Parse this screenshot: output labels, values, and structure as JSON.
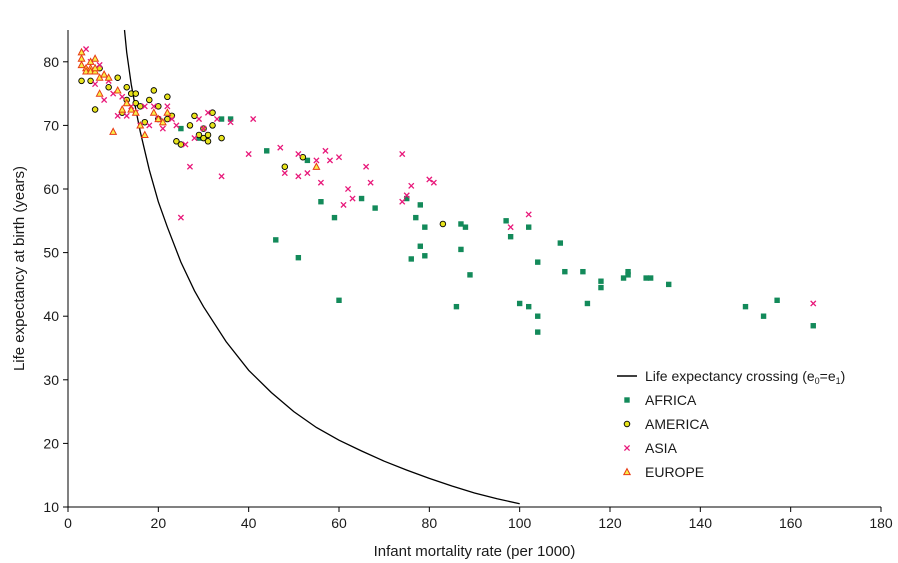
{
  "chart_data": {
    "type": "scatter",
    "title": "",
    "xlabel": "Infant mortality rate (per 1000)",
    "ylabel": "Life expectancy at birth (years)",
    "xlim": [
      0,
      180
    ],
    "ylim": [
      10,
      85
    ],
    "x_ticks": [
      0,
      20,
      40,
      60,
      80,
      100,
      120,
      140,
      160,
      180
    ],
    "y_ticks": [
      10,
      20,
      30,
      40,
      50,
      60,
      70,
      80
    ],
    "x_tick_labels": [
      "0",
      "20",
      "40",
      "60",
      "80",
      "100",
      "120",
      "140",
      "160",
      "180"
    ],
    "y_tick_labels": [
      "10",
      "20",
      "30",
      "40",
      "50",
      "60",
      "70",
      "80"
    ],
    "grid": false,
    "legend_position": "right",
    "curve": {
      "name_main": "Life expectancy crossing (e",
      "name_sub0": "0",
      "name_mid": "=e",
      "name_sub1": "1",
      "name_end": ")",
      "color": "#000000",
      "points": [
        [
          12.5,
          85
        ],
        [
          13,
          81.5
        ],
        [
          14,
          76.5
        ],
        [
          15,
          72.5
        ],
        [
          16,
          69
        ],
        [
          18,
          63
        ],
        [
          20,
          58
        ],
        [
          22,
          54
        ],
        [
          25,
          48.5
        ],
        [
          28,
          44
        ],
        [
          30,
          41.5
        ],
        [
          35,
          36
        ],
        [
          40,
          31.5
        ],
        [
          45,
          28
        ],
        [
          50,
          25
        ],
        [
          55,
          22.5
        ],
        [
          60,
          20.5
        ],
        [
          65,
          18.8
        ],
        [
          70,
          17.2
        ],
        [
          75,
          15.8
        ],
        [
          80,
          14.5
        ],
        [
          85,
          13.3
        ],
        [
          90,
          12.2
        ],
        [
          95,
          11.3
        ],
        [
          100,
          10.5
        ]
      ]
    },
    "series": [
      {
        "name": "AFRICA",
        "color": "#138a5a",
        "marker": "square",
        "points": [
          [
            25,
            69.5
          ],
          [
            29,
            68
          ],
          [
            34,
            71
          ],
          [
            36,
            71
          ],
          [
            44,
            66
          ],
          [
            46,
            52
          ],
          [
            51,
            49.2
          ],
          [
            53,
            64.5
          ],
          [
            56,
            58
          ],
          [
            59,
            55.5
          ],
          [
            60,
            42.5
          ],
          [
            65,
            58.5
          ],
          [
            68,
            57
          ],
          [
            75,
            58.5
          ],
          [
            76,
            49
          ],
          [
            77,
            55.5
          ],
          [
            78,
            51
          ],
          [
            78,
            57.5
          ],
          [
            79,
            54
          ],
          [
            79,
            49.5
          ],
          [
            86,
            41.5
          ],
          [
            87,
            50.5
          ],
          [
            87,
            54.5
          ],
          [
            88,
            54
          ],
          [
            89,
            46.5
          ],
          [
            97,
            55
          ],
          [
            98,
            52.5
          ],
          [
            100,
            42
          ],
          [
            102,
            41.5
          ],
          [
            102,
            54
          ],
          [
            104,
            40
          ],
          [
            104,
            48.5
          ],
          [
            104,
            37.5
          ],
          [
            109,
            51.5
          ],
          [
            110,
            47
          ],
          [
            114,
            47
          ],
          [
            115,
            42
          ],
          [
            118,
            45.5
          ],
          [
            118,
            44.5
          ],
          [
            123,
            46
          ],
          [
            124,
            47
          ],
          [
            124,
            46.5
          ],
          [
            128,
            46
          ],
          [
            129,
            46
          ],
          [
            133,
            45
          ],
          [
            150,
            41.5
          ],
          [
            154,
            40
          ],
          [
            157,
            42.5
          ],
          [
            165,
            38.5
          ]
        ]
      },
      {
        "name": "AMERICA",
        "color": "#e8e41c",
        "marker": "circle",
        "points": [
          [
            3,
            77
          ],
          [
            5,
            77
          ],
          [
            6,
            72.5
          ],
          [
            7,
            79
          ],
          [
            9,
            76
          ],
          [
            11,
            77.5
          ],
          [
            12,
            72
          ],
          [
            13,
            74
          ],
          [
            13,
            76
          ],
          [
            14,
            75
          ],
          [
            15,
            73.5
          ],
          [
            15,
            75
          ],
          [
            16,
            73
          ],
          [
            17,
            70.5
          ],
          [
            18,
            74
          ],
          [
            19,
            75.5
          ],
          [
            20,
            71
          ],
          [
            20,
            73
          ],
          [
            22,
            71
          ],
          [
            22,
            74.5
          ],
          [
            23,
            71.5
          ],
          [
            24,
            67.5
          ],
          [
            25,
            67
          ],
          [
            27,
            70
          ],
          [
            28,
            71.5
          ],
          [
            29,
            68.5
          ],
          [
            30,
            68
          ],
          [
            30,
            69.5
          ],
          [
            31,
            68.5
          ],
          [
            31,
            67.5
          ],
          [
            32,
            72
          ],
          [
            32,
            70
          ],
          [
            34,
            68
          ],
          [
            48,
            63.5
          ],
          [
            52,
            65
          ],
          [
            83,
            54.5
          ]
        ]
      },
      {
        "name": "ASIA",
        "color": "#e8187a",
        "marker": "cross",
        "points": [
          [
            4,
            82
          ],
          [
            5,
            80
          ],
          [
            6,
            76.5
          ],
          [
            7,
            79.5
          ],
          [
            8,
            74
          ],
          [
            9,
            77
          ],
          [
            10,
            75
          ],
          [
            11,
            71.5
          ],
          [
            12,
            74.5
          ],
          [
            13,
            71.5
          ],
          [
            14,
            73
          ],
          [
            15,
            72
          ],
          [
            16,
            70
          ],
          [
            17,
            73
          ],
          [
            18,
            70
          ],
          [
            19,
            73
          ],
          [
            20,
            71
          ],
          [
            21,
            69.5
          ],
          [
            22,
            73
          ],
          [
            23,
            71
          ],
          [
            24,
            70
          ],
          [
            25,
            55.5
          ],
          [
            26,
            67
          ],
          [
            27,
            63.5
          ],
          [
            28,
            68
          ],
          [
            29,
            71
          ],
          [
            30,
            69.5
          ],
          [
            31,
            72
          ],
          [
            33,
            71
          ],
          [
            34,
            62
          ],
          [
            36,
            70.5
          ],
          [
            40,
            65.5
          ],
          [
            41,
            71
          ],
          [
            47,
            66.5
          ],
          [
            48,
            62.5
          ],
          [
            51,
            62
          ],
          [
            51,
            65.5
          ],
          [
            53,
            62.5
          ],
          [
            55,
            64.5
          ],
          [
            56,
            61
          ],
          [
            57,
            66
          ],
          [
            58,
            64.5
          ],
          [
            60,
            65
          ],
          [
            61,
            57.5
          ],
          [
            62,
            60
          ],
          [
            63,
            58.5
          ],
          [
            66,
            63.5
          ],
          [
            67,
            61
          ],
          [
            74,
            65.5
          ],
          [
            74,
            58
          ],
          [
            75,
            59
          ],
          [
            76,
            60.5
          ],
          [
            80,
            61.5
          ],
          [
            81,
            61
          ],
          [
            98,
            54
          ],
          [
            102,
            56
          ],
          [
            165,
            42
          ]
        ]
      },
      {
        "name": "EUROPE",
        "color": "#e83a16",
        "marker": "triangle",
        "points": [
          [
            3,
            81.5
          ],
          [
            3,
            80.5
          ],
          [
            3,
            79.5
          ],
          [
            4,
            79
          ],
          [
            4,
            78.5
          ],
          [
            5,
            79
          ],
          [
            5,
            78.5
          ],
          [
            5,
            80
          ],
          [
            6,
            78.5
          ],
          [
            6,
            79
          ],
          [
            6,
            80.5
          ],
          [
            7,
            75
          ],
          [
            7,
            77.5
          ],
          [
            8,
            78
          ],
          [
            9,
            77.5
          ],
          [
            10,
            69
          ],
          [
            11,
            75.5
          ],
          [
            12,
            72.5
          ],
          [
            13,
            73.5
          ],
          [
            14,
            72.5
          ],
          [
            15,
            72
          ],
          [
            16,
            70
          ],
          [
            17,
            68.5
          ],
          [
            19,
            72
          ],
          [
            20,
            71
          ],
          [
            21,
            70.5
          ],
          [
            22,
            72
          ],
          [
            55,
            63.5
          ]
        ]
      }
    ]
  }
}
